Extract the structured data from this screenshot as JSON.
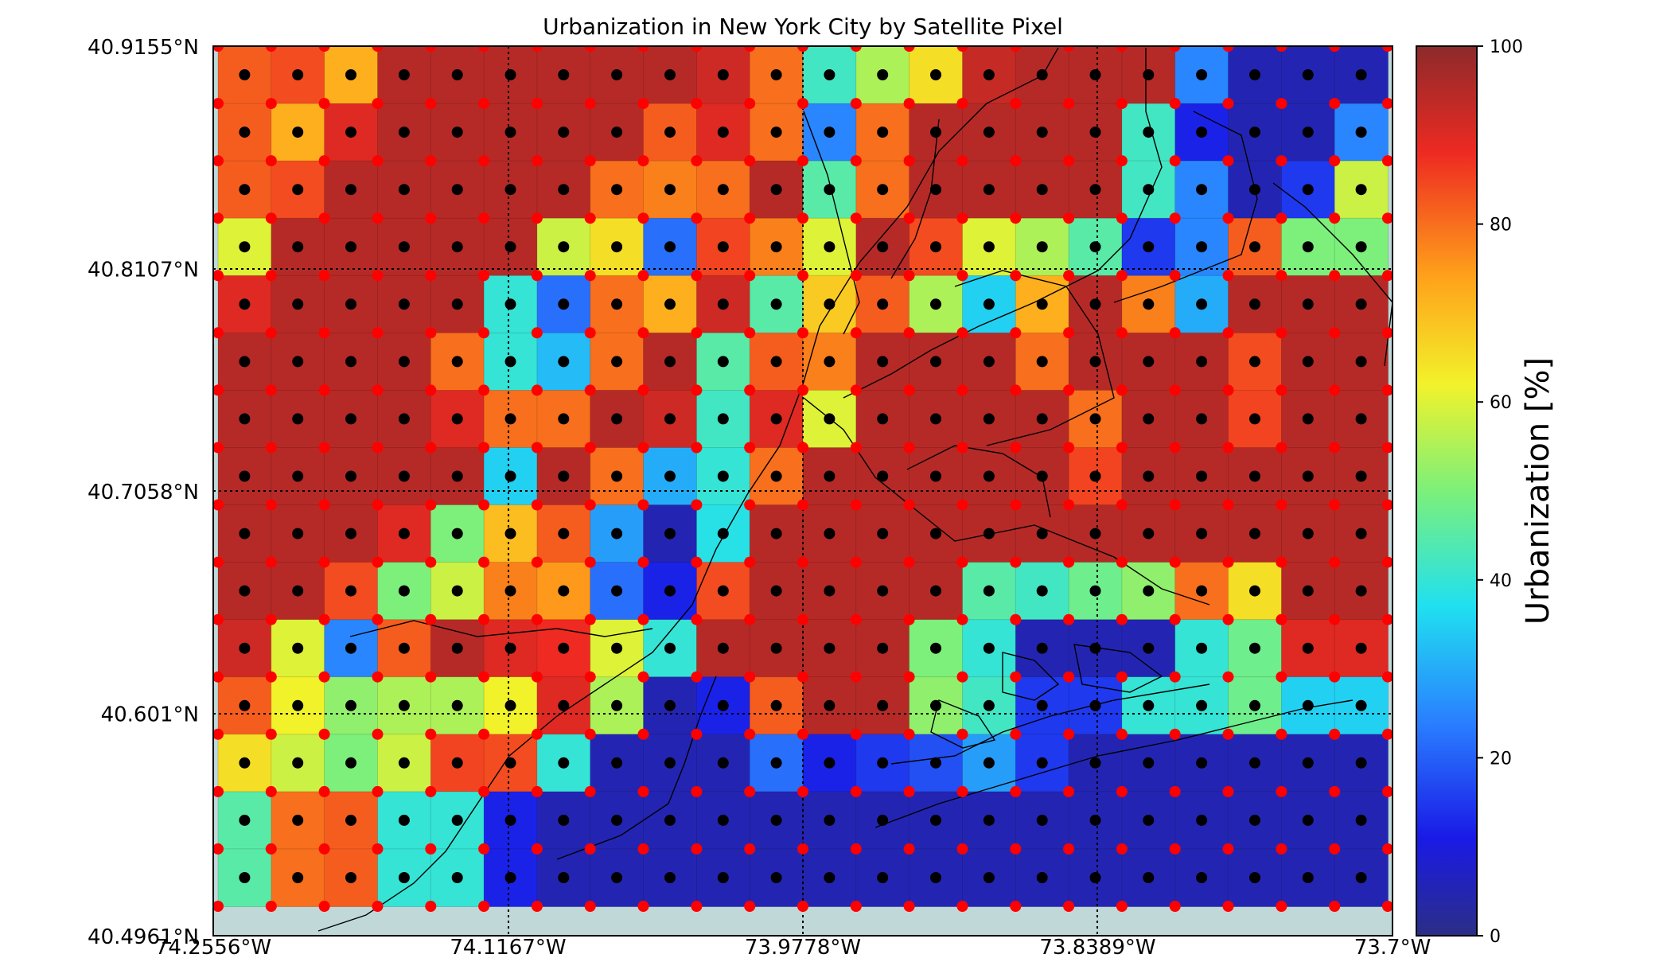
{
  "chart_data": {
    "type": "heatmap",
    "title": "Urbanization in New York City by Satellite Pixel",
    "xlabel": "",
    "ylabel": "",
    "xlim": [
      -74.2556,
      -73.7
    ],
    "ylim": [
      40.4961,
      40.9155
    ],
    "x_tick_values": [
      -74.2556,
      -74.1167,
      -73.9778,
      -73.8389,
      -73.7
    ],
    "x_tick_labels": [
      "74.2556°W",
      "74.1167°W",
      "73.9778°W",
      "73.8389°W",
      "73.7°W"
    ],
    "y_tick_values": [
      40.4961,
      40.601,
      40.7058,
      40.8107,
      40.9155
    ],
    "y_tick_labels": [
      "40.4961°N",
      "40.601°N",
      "40.7058°N",
      "40.8107°N",
      "40.9155°N"
    ],
    "grid": true,
    "colorbar": {
      "label": "Urbanization [%]",
      "min": 0,
      "max": 100,
      "ticks": [
        0,
        20,
        40,
        60,
        80,
        100
      ],
      "tick_labels": [
        "0",
        "20",
        "40",
        "60",
        "80",
        "100"
      ],
      "colormap": "jet"
    },
    "grid_columns": 22,
    "grid_rows": 15,
    "values": [
      [
        82,
        84,
        72,
        95,
        95,
        95,
        95,
        95,
        95,
        92,
        80,
        42,
        55,
        65,
        93,
        95,
        95,
        95,
        25,
        5,
        5,
        5
      ],
      [
        82,
        72,
        90,
        95,
        95,
        95,
        95,
        95,
        82,
        90,
        80,
        25,
        80,
        95,
        95,
        95,
        95,
        42,
        12,
        5,
        5,
        25
      ],
      [
        82,
        84,
        95,
        95,
        95,
        95,
        95,
        80,
        78,
        80,
        95,
        45,
        80,
        95,
        95,
        95,
        95,
        42,
        25,
        5,
        15,
        58
      ],
      [
        60,
        95,
        95,
        95,
        95,
        95,
        58,
        65,
        22,
        85,
        78,
        60,
        95,
        84,
        60,
        55,
        45,
        15,
        25,
        82,
        50,
        50
      ],
      [
        90,
        95,
        95,
        95,
        95,
        40,
        22,
        80,
        72,
        92,
        45,
        68,
        82,
        55,
        35,
        72,
        95,
        78,
        30,
        95,
        95,
        95
      ],
      [
        95,
        95,
        95,
        95,
        80,
        40,
        32,
        80,
        95,
        45,
        82,
        78,
        95,
        95,
        95,
        80,
        95,
        95,
        95,
        84,
        95,
        95
      ],
      [
        95,
        95,
        95,
        95,
        90,
        80,
        80,
        95,
        92,
        42,
        90,
        60,
        95,
        95,
        95,
        95,
        80,
        95,
        95,
        85,
        95,
        95
      ],
      [
        95,
        95,
        95,
        95,
        95,
        35,
        95,
        80,
        30,
        40,
        80,
        95,
        95,
        95,
        95,
        95,
        85,
        95,
        95,
        95,
        95,
        95
      ],
      [
        95,
        95,
        95,
        90,
        50,
        70,
        82,
        28,
        5,
        38,
        95,
        95,
        95,
        95,
        95,
        95,
        95,
        95,
        95,
        95,
        95,
        95
      ],
      [
        95,
        95,
        84,
        50,
        58,
        78,
        75,
        22,
        12,
        84,
        95,
        95,
        95,
        95,
        45,
        42,
        48,
        52,
        80,
        65,
        95,
        95
      ],
      [
        92,
        60,
        25,
        82,
        95,
        90,
        88,
        60,
        40,
        95,
        95,
        95,
        95,
        50,
        40,
        5,
        5,
        5,
        40,
        48,
        90,
        90
      ],
      [
        82,
        62,
        52,
        55,
        55,
        62,
        90,
        55,
        5,
        12,
        82,
        95,
        95,
        52,
        42,
        15,
        15,
        40,
        40,
        48,
        35,
        35
      ],
      [
        65,
        58,
        50,
        58,
        85,
        84,
        40,
        5,
        5,
        5,
        22,
        12,
        15,
        18,
        28,
        15,
        5,
        5,
        5,
        5,
        5,
        5
      ],
      [
        45,
        80,
        82,
        40,
        40,
        12,
        5,
        5,
        5,
        5,
        5,
        5,
        5,
        5,
        5,
        5,
        5,
        5,
        5,
        5,
        5,
        5
      ],
      [
        45,
        80,
        82,
        40,
        40,
        12,
        5,
        5,
        5,
        5,
        5,
        5,
        5,
        5,
        5,
        5,
        5,
        5,
        5,
        5,
        5,
        5
      ]
    ],
    "fill_value_color": "#c0d8d8"
  }
}
